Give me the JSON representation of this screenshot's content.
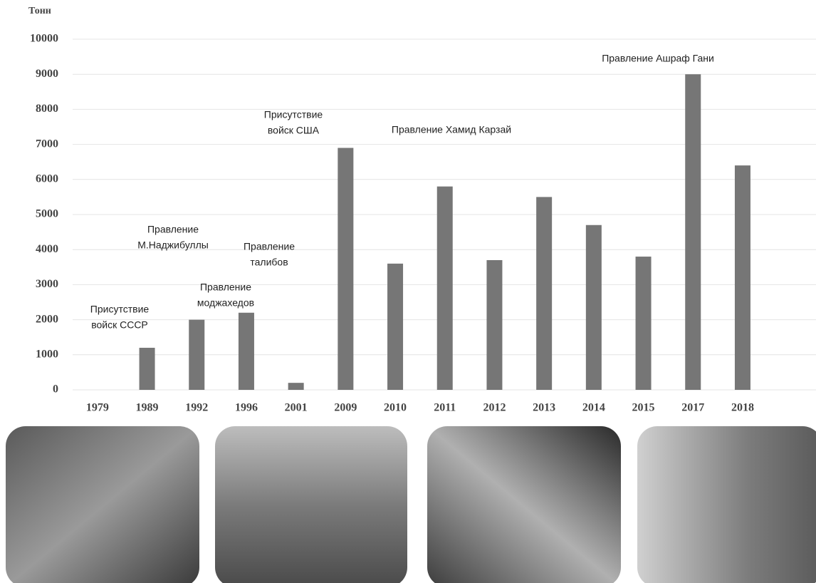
{
  "chart_data": {
    "type": "bar",
    "y_axis_label": "Тонн",
    "categories": [
      "1979",
      "1989",
      "1992",
      "1996",
      "2001",
      "2009",
      "2010",
      "2011",
      "2012",
      "2013",
      "2014",
      "2015",
      "2017",
      "2018"
    ],
    "values": [
      0,
      1200,
      2000,
      2200,
      200,
      6900,
      3600,
      5800,
      3700,
      5500,
      4700,
      3800,
      9000,
      6400
    ],
    "color": "#767676",
    "ylim": [
      0,
      10000
    ],
    "yticks": [
      0,
      1000,
      2000,
      3000,
      4000,
      5000,
      6000,
      7000,
      8000,
      9000,
      10000
    ],
    "grid": true,
    "annotations": [
      {
        "lines": [
          "Присутствие",
          "войск СССР"
        ]
      },
      {
        "lines": [
          "Правление",
          "М.Наджибуллы"
        ]
      },
      {
        "lines": [
          "Правление",
          "моджахедов"
        ]
      },
      {
        "lines": [
          "Правление",
          "талибов"
        ]
      },
      {
        "lines": [
          "Присутствие",
          "войск США"
        ]
      },
      {
        "lines": [
          "Правление Хамид Карзай"
        ]
      },
      {
        "lines": [
          "Правление Ашраф Гани"
        ]
      }
    ]
  }
}
